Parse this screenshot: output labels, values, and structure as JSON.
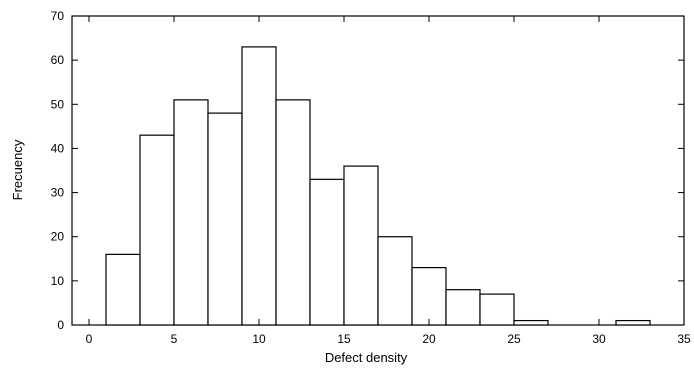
{
  "chart_data": {
    "type": "bar",
    "subtype": "histogram",
    "xlabel": "Defect density",
    "ylabel": "Frecuency",
    "xlim": [
      -1,
      35
    ],
    "ylim": [
      0,
      70
    ],
    "xticks": [
      0,
      5,
      10,
      15,
      20,
      25,
      30,
      35
    ],
    "yticks": [
      0,
      10,
      20,
      30,
      40,
      50,
      60,
      70
    ],
    "bin_width": 2,
    "bins": [
      {
        "x0": 1,
        "x1": 3,
        "value": 16
      },
      {
        "x0": 3,
        "x1": 5,
        "value": 43
      },
      {
        "x0": 5,
        "x1": 7,
        "value": 51
      },
      {
        "x0": 7,
        "x1": 9,
        "value": 48
      },
      {
        "x0": 9,
        "x1": 11,
        "value": 63
      },
      {
        "x0": 11,
        "x1": 13,
        "value": 51
      },
      {
        "x0": 13,
        "x1": 15,
        "value": 33
      },
      {
        "x0": 15,
        "x1": 17,
        "value": 36
      },
      {
        "x0": 17,
        "x1": 19,
        "value": 20
      },
      {
        "x0": 19,
        "x1": 21,
        "value": 13
      },
      {
        "x0": 21,
        "x1": 23,
        "value": 8
      },
      {
        "x0": 23,
        "x1": 25,
        "value": 7
      },
      {
        "x0": 25,
        "x1": 27,
        "value": 1
      },
      {
        "x0": 31,
        "x1": 33,
        "value": 1
      }
    ],
    "bar_fill": "#ffffff",
    "bar_stroke": "#000000",
    "grid": false,
    "legend": "none"
  }
}
